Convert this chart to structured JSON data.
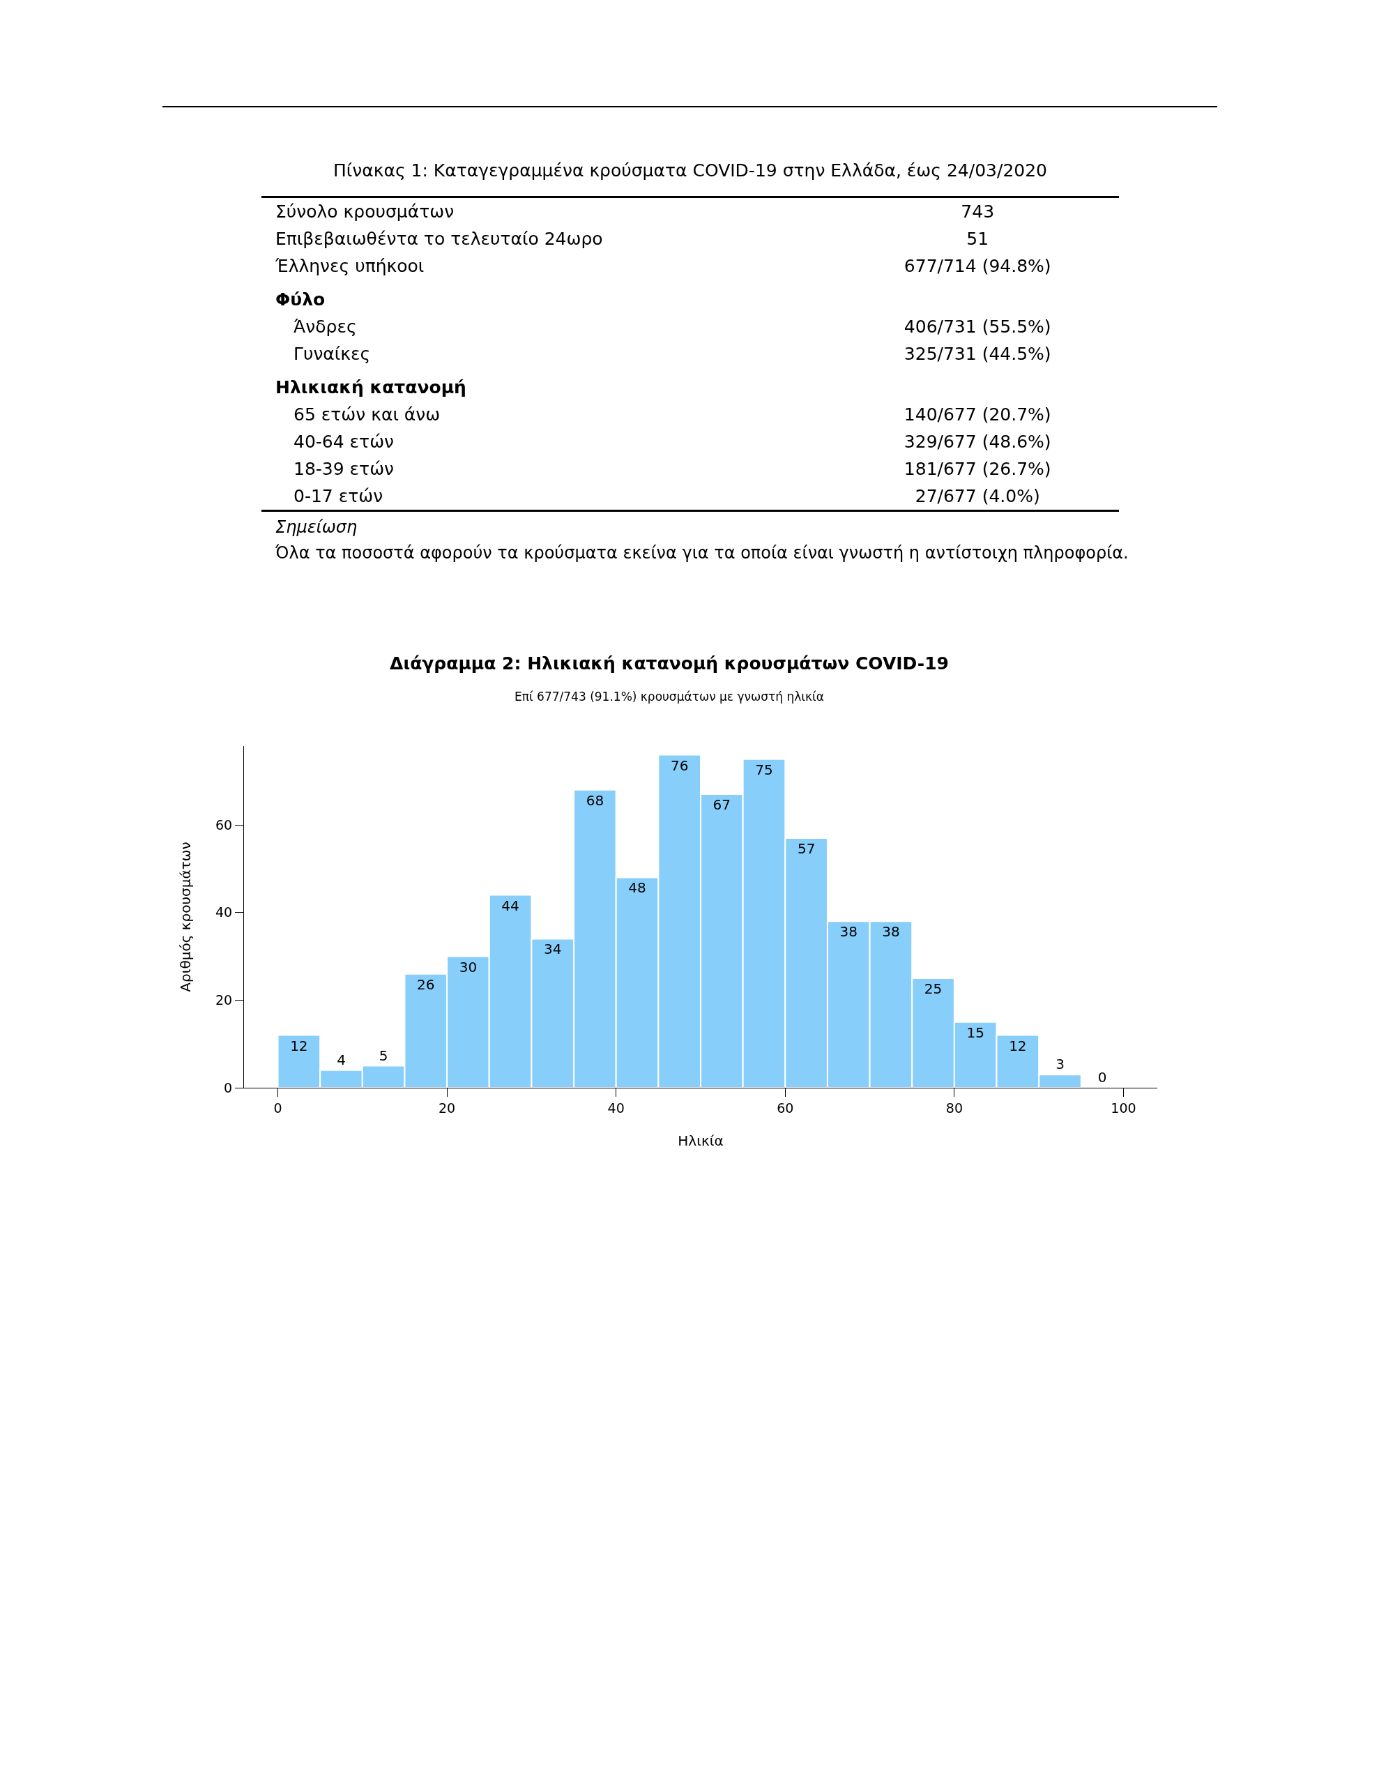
{
  "chart_data": [
    {
      "type": "other",
      "title": "Πίνακας 1: Καταγεγραμμένα κρούσματα COVID-19 στην Ελλάδα, έως 24/03/2020",
      "categories": [
        "Σύνολο κρουσμάτων",
        "Επιβεβαιωθέντα το τελευταίο 24ωρο",
        "Έλληνες υπήκοοι",
        "Φύλο",
        "Άνδρες",
        "Γυναίκες",
        "Ηλικιακή κατανομή",
        "65 ετών και άνω",
        "40-64 ετών",
        "18-39 ετών",
        "0-17 ετών"
      ],
      "value_labels": [
        "743",
        "51",
        "677/714 (94.8%)",
        null,
        "406/731 (55.5%)",
        "325/731 (44.5%)",
        null,
        "140/677 (20.7%)",
        "329/677 (48.6%)",
        "181/677 (26.7%)",
        "27/677 (4.0%)"
      ],
      "annotations": [
        "Σημείωση",
        "Όλα τα ποσοστά αφορούν τα κρούσματα εκείνα για τα οποία είναι γνωστή η αντίστοιχη πληροφορία."
      ]
    },
    {
      "type": "histogram",
      "title": "Διάγραμμα 2: Ηλικιακή κατανομή κρουσμάτων COVID-19",
      "subtitle": "Επί 677/743 (91.1%) κρουσμάτων με γνωστή ηλικία",
      "xlabel": "Ηλικία",
      "ylabel": "Αριθμός κρουσμάτων",
      "bins": [
        0,
        5,
        10,
        15,
        20,
        25,
        30,
        35,
        40,
        45,
        50,
        55,
        60,
        65,
        70,
        75,
        80,
        85,
        90,
        95,
        100
      ],
      "values": [
        12,
        4,
        5,
        26,
        30,
        44,
        34,
        68,
        48,
        76,
        67,
        75,
        57,
        38,
        38,
        25,
        15,
        12,
        3,
        0
      ],
      "color": "#87cefa",
      "data_labels": true,
      "xlim": [
        -4,
        104
      ],
      "xticks": [
        0,
        20,
        40,
        60,
        80,
        100
      ],
      "ylim": [
        0,
        78
      ],
      "yticks": [
        0,
        20,
        40,
        60
      ]
    }
  ]
}
